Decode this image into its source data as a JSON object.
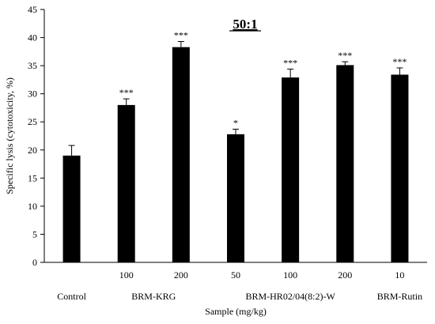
{
  "chart_data": {
    "type": "bar",
    "title": "50:1",
    "xlabel": "Sample (mg/kg)",
    "ylabel": "Specific lysis (cytotoxicity, %)",
    "ylim": [
      0,
      45
    ],
    "y_ticks": [
      0,
      5,
      10,
      15,
      20,
      25,
      30,
      35,
      40,
      45
    ],
    "grid": false,
    "legend": "none",
    "bar_color": "#000000",
    "categories": [
      "Control",
      "100",
      "200",
      "50",
      "100",
      "200",
      "10"
    ],
    "values": [
      19.0,
      28.0,
      38.3,
      22.8,
      32.9,
      35.1,
      33.4
    ],
    "errors": [
      1.8,
      1.1,
      1.0,
      0.9,
      1.5,
      0.6,
      1.2
    ],
    "significance": [
      "",
      "***",
      "***",
      "*",
      "***",
      "***",
      "***"
    ],
    "group_labels": [
      {
        "label": "BRM-KRG",
        "from": 1,
        "to": 2
      },
      {
        "label": "BRM-HR02/04(8:2)-W",
        "from": 3,
        "to": 5
      },
      {
        "label": "BRM-Rutin",
        "from": 6,
        "to": 6
      }
    ]
  }
}
